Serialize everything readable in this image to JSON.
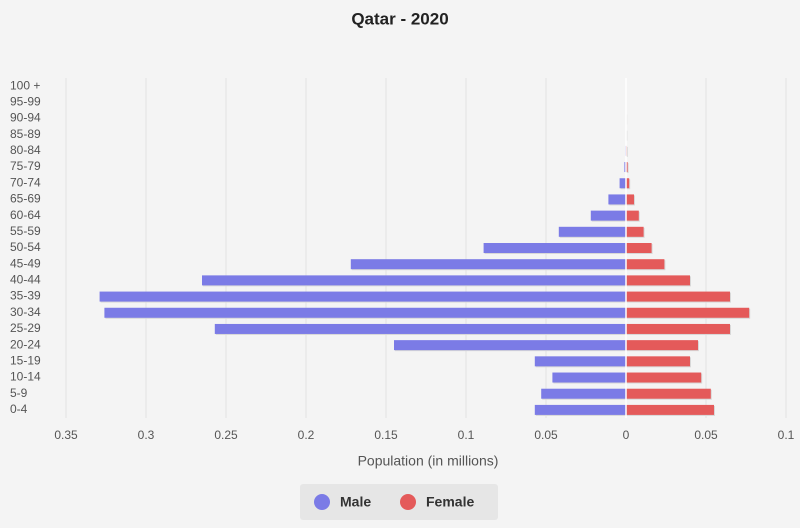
{
  "chart_data": {
    "type": "population-pyramid",
    "title": "Qatar - 2020",
    "x_label": "Population (in millions)",
    "categories": [
      "0-4",
      "5-9",
      "10-14",
      "15-19",
      "20-24",
      "25-29",
      "30-34",
      "35-39",
      "40-44",
      "45-49",
      "50-54",
      "55-59",
      "60-64",
      "65-69",
      "70-74",
      "75-79",
      "80-84",
      "85-89",
      "90-94",
      "95-99",
      "100 +"
    ],
    "series": [
      {
        "name": "Male",
        "color": "#7b7be6",
        "side": "left",
        "values": [
          0.057,
          0.053,
          0.046,
          0.057,
          0.145,
          0.257,
          0.326,
          0.329,
          0.265,
          0.172,
          0.089,
          0.042,
          0.022,
          0.011,
          0.004,
          0.001,
          0.0005,
          0.0002,
          0.0001,
          0,
          0
        ]
      },
      {
        "name": "Female",
        "color": "#e45a5a",
        "side": "right",
        "values": [
          0.055,
          0.053,
          0.047,
          0.04,
          0.045,
          0.065,
          0.077,
          0.065,
          0.04,
          0.024,
          0.016,
          0.011,
          0.008,
          0.005,
          0.002,
          0.001,
          0.0005,
          0.0002,
          0.0001,
          0,
          0
        ]
      }
    ],
    "xlim": [
      -0.35,
      0.1
    ],
    "xticks": [
      {
        "value": -0.35,
        "label": "0.35"
      },
      {
        "value": -0.3,
        "label": "0.3"
      },
      {
        "value": -0.25,
        "label": "0.25"
      },
      {
        "value": -0.2,
        "label": "0.2"
      },
      {
        "value": -0.15,
        "label": "0.15"
      },
      {
        "value": -0.1,
        "label": "0.1"
      },
      {
        "value": -0.05,
        "label": "0.05"
      },
      0,
      0.05,
      0.1
    ],
    "grid": true
  }
}
